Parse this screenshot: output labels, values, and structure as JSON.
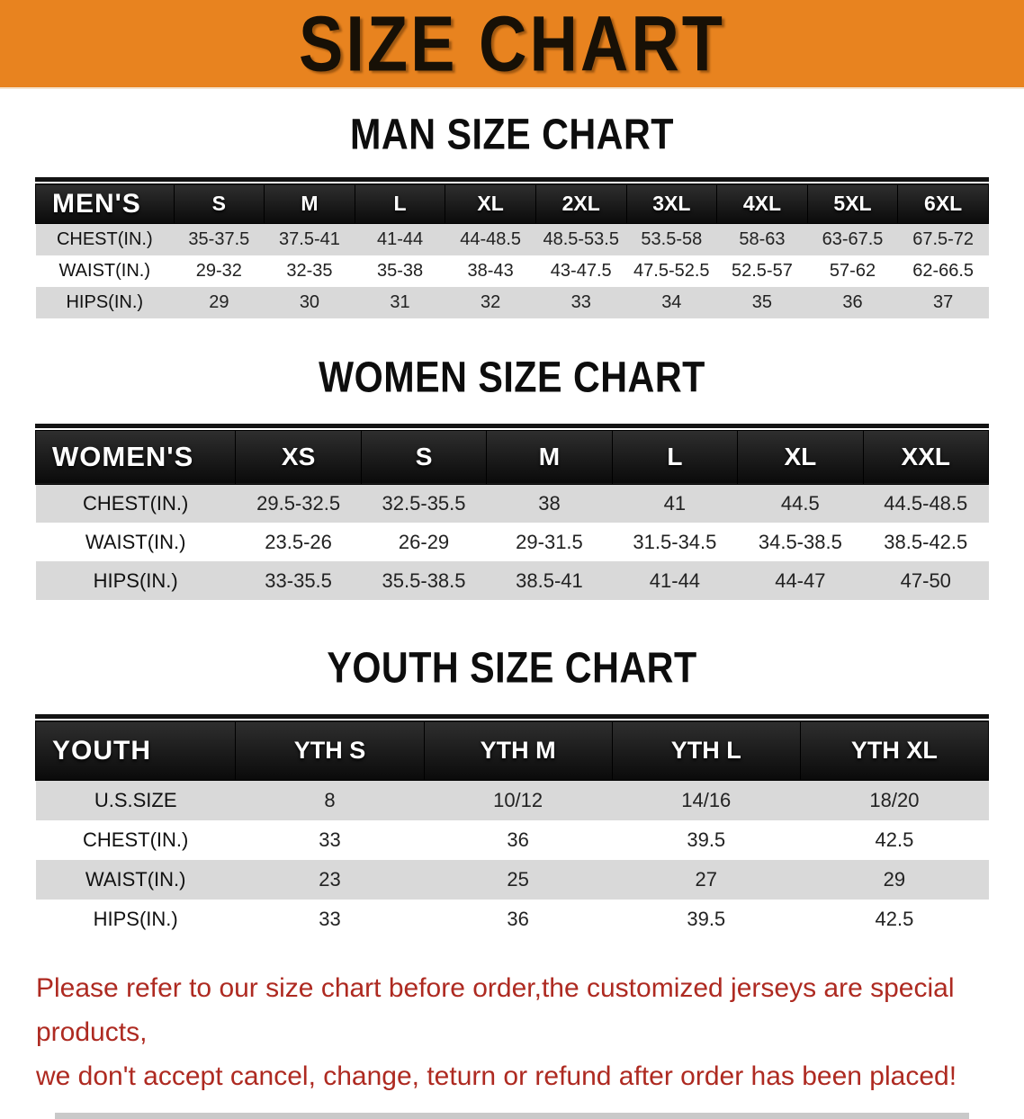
{
  "banner": {
    "title": "SIZE CHART"
  },
  "colors": {
    "banner_orange": "#E8831F",
    "table_header_black": "#0a0a0a",
    "row_gray": "#D9D9D9",
    "disclaimer_red": "#AE2A21"
  },
  "chart_data": [
    {
      "type": "table",
      "title": "MAN SIZE CHART",
      "header_label": "MEN'S",
      "columns": [
        "S",
        "M",
        "L",
        "XL",
        "2XL",
        "3XL",
        "4XL",
        "5XL",
        "6XL"
      ],
      "rows": [
        {
          "label": "CHEST(IN.)",
          "values": [
            "35-37.5",
            "37.5-41",
            "41-44",
            "44-48.5",
            "48.5-53.5",
            "53.5-58",
            "58-63",
            "63-67.5",
            "67.5-72"
          ]
        },
        {
          "label": "WAIST(IN.)",
          "values": [
            "29-32",
            "32-35",
            "35-38",
            "38-43",
            "43-47.5",
            "47.5-52.5",
            "52.5-57",
            "57-62",
            "62-66.5"
          ]
        },
        {
          "label": "HIPS(IN.)",
          "values": [
            "29",
            "30",
            "31",
            "32",
            "33",
            "34",
            "35",
            "36",
            "37"
          ]
        }
      ]
    },
    {
      "type": "table",
      "title": "WOMEN SIZE CHART",
      "header_label": "WOMEN'S",
      "columns": [
        "XS",
        "S",
        "M",
        "L",
        "XL",
        "XXL"
      ],
      "rows": [
        {
          "label": "CHEST(IN.)",
          "values": [
            "29.5-32.5",
            "32.5-35.5",
            "38",
            "41",
            "44.5",
            "44.5-48.5"
          ]
        },
        {
          "label": "WAIST(IN.)",
          "values": [
            "23.5-26",
            "26-29",
            "29-31.5",
            "31.5-34.5",
            "34.5-38.5",
            "38.5-42.5"
          ]
        },
        {
          "label": "HIPS(IN.)",
          "values": [
            "33-35.5",
            "35.5-38.5",
            "38.5-41",
            "41-44",
            "44-47",
            "47-50"
          ]
        }
      ]
    },
    {
      "type": "table",
      "title": "YOUTH SIZE CHART",
      "header_label": "YOUTH",
      "columns": [
        "YTH S",
        "YTH M",
        "YTH L",
        "YTH XL"
      ],
      "rows": [
        {
          "label": "U.S.SIZE",
          "values": [
            "8",
            "10/12",
            "14/16",
            "18/20"
          ]
        },
        {
          "label": "CHEST(IN.)",
          "values": [
            "33",
            "36",
            "39.5",
            "42.5"
          ]
        },
        {
          "label": "WAIST(IN.)",
          "values": [
            "23",
            "25",
            "27",
            "29"
          ]
        },
        {
          "label": "HIPS(IN.)",
          "values": [
            "33",
            "36",
            "39.5",
            "42.5"
          ]
        }
      ]
    }
  ],
  "disclaimer": {
    "line1": "Please refer to our size chart before order,the customized jerseys are special products,",
    "line2": "we don't accept cancel, change, teturn or refund after order has been placed!"
  }
}
